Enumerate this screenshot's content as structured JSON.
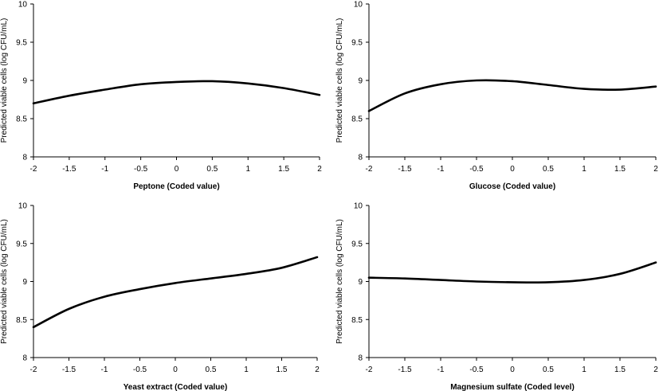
{
  "chart_data": [
    {
      "type": "line",
      "title": "",
      "xlabel": "Peptone (Coded value)",
      "ylabel": "Predicted viable cells (log CFU/mL)",
      "xlim": [
        -2,
        2
      ],
      "ylim": [
        8,
        10
      ],
      "x_ticks": [
        "-2",
        "-1.5",
        "-1",
        "-0.5",
        "0",
        "0.5",
        "1",
        "1.5",
        "2"
      ],
      "y_ticks": [
        "8",
        "8.5",
        "9",
        "9.5",
        "10"
      ],
      "x": [
        -2,
        -1.5,
        -1,
        -0.5,
        0,
        0.5,
        1,
        1.5,
        2
      ],
      "series": [
        {
          "values": [
            8.7,
            8.8,
            8.88,
            8.95,
            8.98,
            8.99,
            8.96,
            8.9,
            8.81
          ]
        }
      ]
    },
    {
      "type": "line",
      "title": "",
      "xlabel": "Glucose (Coded value)",
      "ylabel": "Predicted viable cells (log CFU/mL)",
      "xlim": [
        -2,
        2
      ],
      "ylim": [
        8,
        10
      ],
      "x_ticks": [
        "-2",
        "-1.5",
        "-1",
        "-0.5",
        "0",
        "0.5",
        "1",
        "1.5",
        "2"
      ],
      "y_ticks": [
        "8",
        "8.5",
        "9",
        "9.5",
        "10"
      ],
      "x": [
        -2,
        -1.5,
        -1,
        -0.5,
        0,
        0.5,
        1,
        1.5,
        2
      ],
      "series": [
        {
          "values": [
            8.6,
            8.83,
            8.95,
            9.0,
            8.99,
            8.94,
            8.89,
            8.88,
            8.92
          ]
        }
      ]
    },
    {
      "type": "line",
      "title": "",
      "xlabel": "Yeast extract (Coded value)",
      "ylabel": "Predicted viable cells (log CFU/mL)",
      "xlim": [
        -2,
        2
      ],
      "ylim": [
        8,
        10
      ],
      "x_ticks": [
        "-2",
        "-1.5",
        "-1",
        "-0.5",
        "0",
        "0.5",
        "1",
        "1.5",
        "2"
      ],
      "y_ticks": [
        "8",
        "8.5",
        "9",
        "9.5",
        "10"
      ],
      "x": [
        -2,
        -1.5,
        -1,
        -0.5,
        0,
        0.5,
        1,
        1.5,
        2
      ],
      "series": [
        {
          "values": [
            8.4,
            8.64,
            8.8,
            8.9,
            8.98,
            9.04,
            9.1,
            9.18,
            9.32
          ]
        }
      ]
    },
    {
      "type": "line",
      "title": "",
      "xlabel": "Magnesium sulfate (Coded level)",
      "ylabel": "Predicted viable cells (log CFU/mL)",
      "xlim": [
        -2,
        2
      ],
      "ylim": [
        8,
        10
      ],
      "x_ticks": [
        "-2",
        "-1.5",
        "-1",
        "-0.5",
        "0",
        "0.5",
        "1",
        "1.5",
        "2"
      ],
      "y_ticks": [
        "8",
        "8.5",
        "9",
        "9.5",
        "10"
      ],
      "x": [
        -2,
        -1.5,
        -1,
        -0.5,
        0,
        0.5,
        1,
        1.5,
        2
      ],
      "series": [
        {
          "values": [
            9.05,
            9.04,
            9.02,
            9.0,
            8.99,
            8.99,
            9.02,
            9.1,
            9.25
          ]
        }
      ]
    }
  ]
}
